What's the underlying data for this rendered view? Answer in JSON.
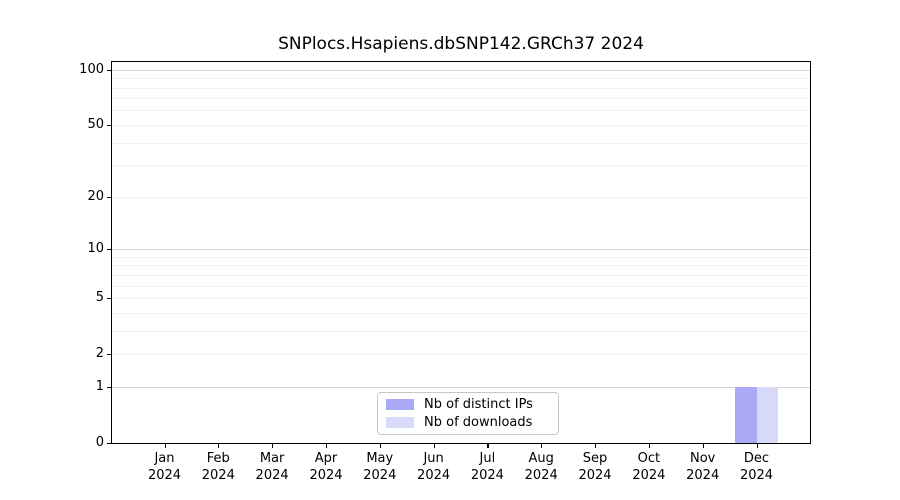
{
  "chart_data": {
    "type": "bar",
    "title": "SNPlocs.Hsapiens.dbSNP142.GRCh37 2024",
    "categories": [
      "Jan",
      "Feb",
      "Mar",
      "Apr",
      "May",
      "Jun",
      "Jul",
      "Aug",
      "Sep",
      "Oct",
      "Nov",
      "Dec"
    ],
    "year_label": "2024",
    "series": [
      {
        "name": "Nb of distinct IPs",
        "color": "#a9a9f5",
        "values": [
          0,
          0,
          0,
          0,
          0,
          0,
          0,
          0,
          0,
          0,
          0,
          1
        ]
      },
      {
        "name": "Nb of downloads",
        "color": "#d9d9f9",
        "values": [
          0,
          0,
          0,
          0,
          0,
          0,
          0,
          0,
          0,
          0,
          0,
          1
        ]
      }
    ],
    "xlabel": "",
    "ylabel": "",
    "scale": "log1p",
    "ylim": [
      0,
      110
    ],
    "y_ticks": [
      0,
      1,
      2,
      5,
      10,
      20,
      50,
      100
    ],
    "major_gridlines": [
      1,
      10,
      100
    ],
    "minor_gridlines": [
      2,
      3,
      4,
      5,
      6,
      7,
      8,
      9,
      20,
      30,
      40,
      50,
      60,
      70,
      80,
      90
    ],
    "grid": true,
    "legend_position": "lower center",
    "colors": {
      "axis": "#000000",
      "text": "#000000",
      "major_grid": "#d3d3d3",
      "minor_grid": "#f0f0f0",
      "legend_border": "#c8c8c8",
      "background": "#ffffff"
    }
  }
}
